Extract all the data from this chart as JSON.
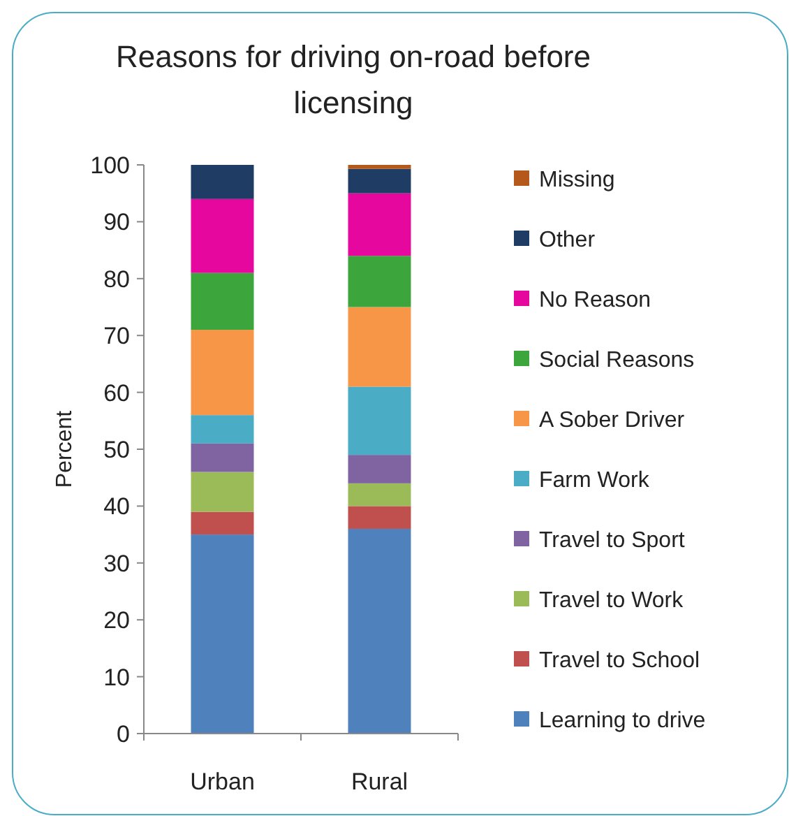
{
  "chart_data": {
    "type": "bar",
    "title": "Reasons for driving on-road before licensing",
    "ylabel": "Percent",
    "categories": [
      "Urban",
      "Rural"
    ],
    "stacked": true,
    "ylim": [
      0,
      100
    ],
    "yticks": [
      0,
      10,
      20,
      30,
      40,
      50,
      60,
      70,
      80,
      90,
      100
    ],
    "grid": false,
    "legend": "right",
    "series": [
      {
        "name": "Learning to drive",
        "color": "#4f81bd",
        "values": [
          35,
          36
        ]
      },
      {
        "name": "Travel to School",
        "color": "#c0504d",
        "values": [
          4,
          4
        ]
      },
      {
        "name": "Travel to Work",
        "color": "#9bbb59",
        "values": [
          7,
          4
        ]
      },
      {
        "name": "Travel to Sport",
        "color": "#8064a2",
        "values": [
          5,
          5
        ]
      },
      {
        "name": "Farm Work",
        "color": "#4bacc6",
        "values": [
          5,
          12
        ]
      },
      {
        "name": "A Sober Driver",
        "color": "#f79646",
        "values": [
          15,
          14
        ]
      },
      {
        "name": "Social Reasons",
        "color": "#3ca63c",
        "values": [
          10,
          9
        ]
      },
      {
        "name": "No Reason",
        "color": "#e6079e",
        "values": [
          13,
          11
        ]
      },
      {
        "name": "Other",
        "color": "#1f3d64",
        "values": [
          6,
          4.3
        ]
      },
      {
        "name": "Missing",
        "color": "#b5581c",
        "values": [
          0,
          0.7
        ]
      }
    ]
  }
}
